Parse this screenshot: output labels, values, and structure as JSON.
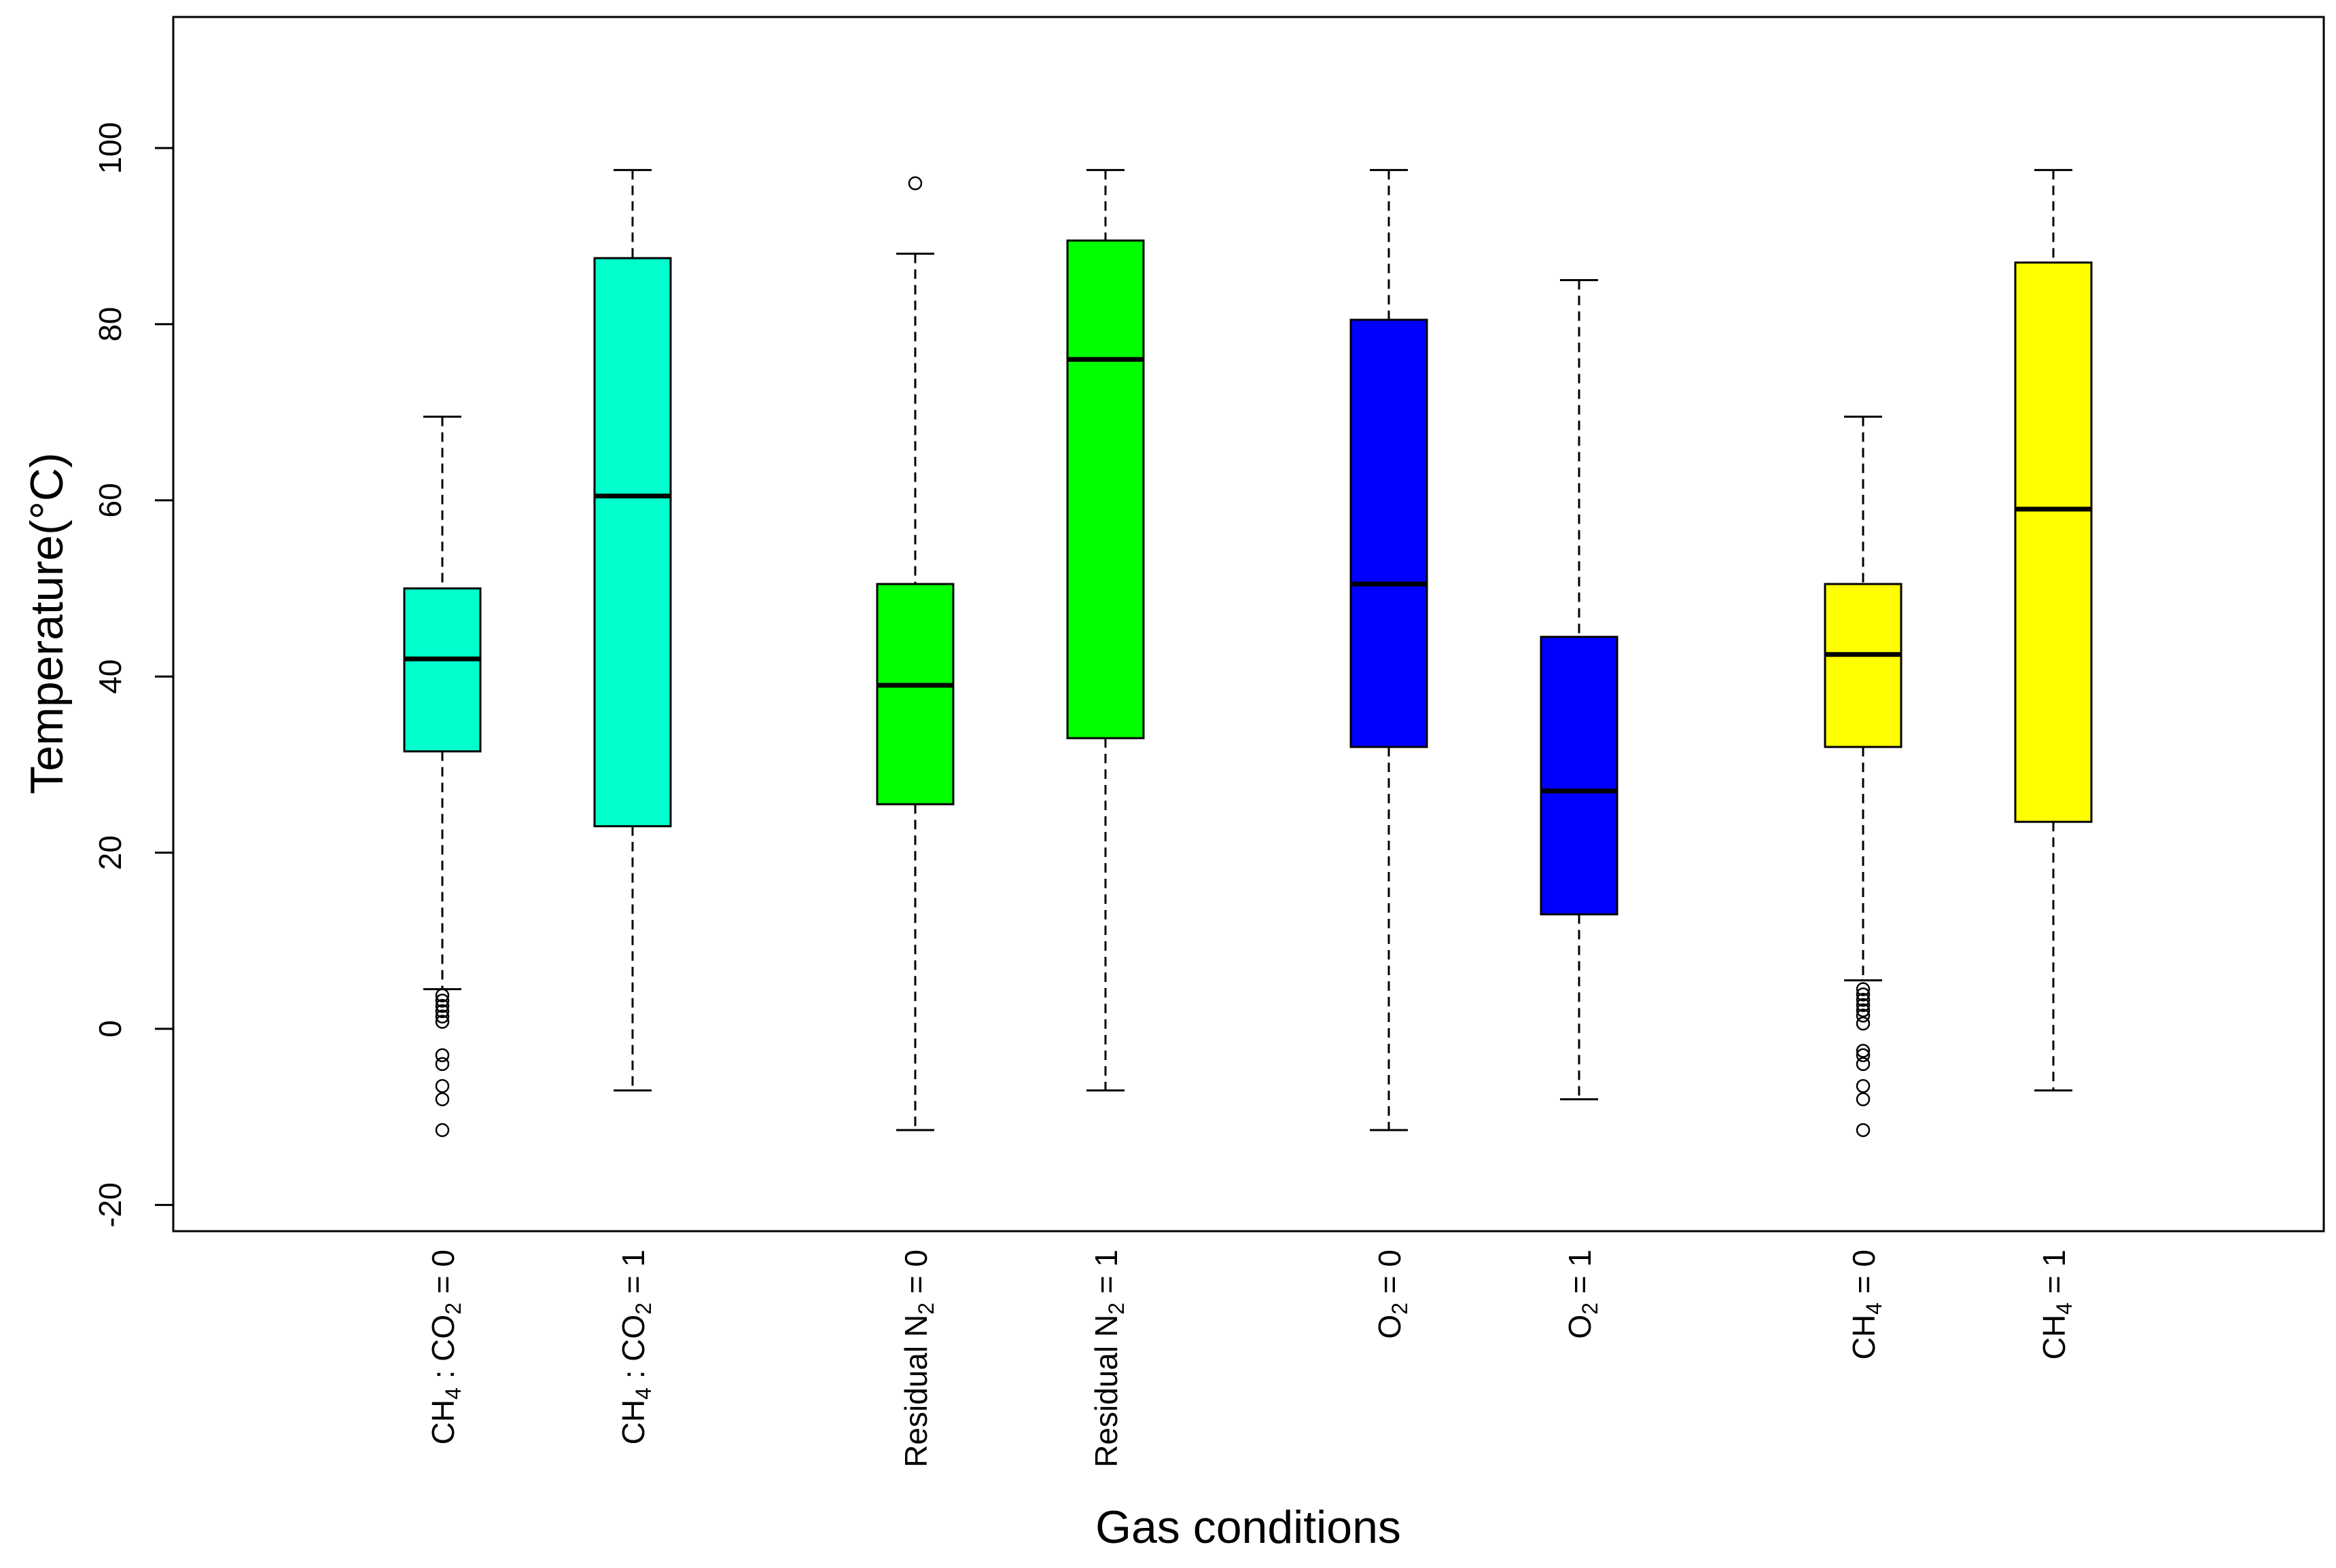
{
  "chart_data": {
    "type": "boxplot",
    "xlabel": "Gas conditions",
    "ylabel": "Temperature(°C)",
    "ylim": [
      -23,
      115
    ],
    "yticks": [
      -20,
      0,
      20,
      40,
      60,
      80,
      100
    ],
    "grid": false,
    "legend": "none",
    "categories": [
      {
        "label_parts": [
          [
            "CH",
            ""
          ],
          [
            "4",
            "sub"
          ],
          [
            " : CO",
            ""
          ],
          [
            "2",
            "sub"
          ],
          [
            " = 0",
            ""
          ]
        ]
      },
      {
        "label_parts": [
          [
            "CH",
            ""
          ],
          [
            "4",
            "sub"
          ],
          [
            " : CO",
            ""
          ],
          [
            "2",
            "sub"
          ],
          [
            " = 1",
            ""
          ]
        ]
      },
      {
        "label_parts": [
          [
            "Residual N",
            ""
          ],
          [
            "2",
            "sub"
          ],
          [
            " = 0",
            ""
          ]
        ]
      },
      {
        "label_parts": [
          [
            "Residual N",
            ""
          ],
          [
            "2",
            "sub"
          ],
          [
            " = 1",
            ""
          ]
        ]
      },
      {
        "label_parts": [
          [
            "O",
            ""
          ],
          [
            "2",
            "sub"
          ],
          [
            " = 0",
            ""
          ]
        ]
      },
      {
        "label_parts": [
          [
            "O",
            ""
          ],
          [
            "2",
            "sub"
          ],
          [
            " = 1",
            ""
          ]
        ]
      },
      {
        "label_parts": [
          [
            "CH",
            ""
          ],
          [
            "4",
            "sub"
          ],
          [
            " = 0",
            ""
          ]
        ]
      },
      {
        "label_parts": [
          [
            "CH",
            ""
          ],
          [
            "4",
            "sub"
          ],
          [
            " = 1",
            ""
          ]
        ]
      }
    ],
    "boxes": [
      {
        "whisker_low": 4.5,
        "q1": 31.5,
        "median": 42,
        "q3": 50,
        "whisker_high": 69.5,
        "outliers": [
          3.8,
          3.2,
          2.6,
          2.0,
          1.4,
          0.8,
          -3,
          -4,
          -6.5,
          -8,
          -11.5
        ],
        "color": "#00FFCC"
      },
      {
        "whisker_low": -7,
        "q1": 23,
        "median": 60.5,
        "q3": 87.5,
        "whisker_high": 97.5,
        "outliers": [],
        "color": "#00FFCC"
      },
      {
        "whisker_low": -11.5,
        "q1": 25.5,
        "median": 39,
        "q3": 50.5,
        "whisker_high": 88,
        "outliers": [
          96
        ],
        "color": "#00FF00"
      },
      {
        "whisker_low": -7,
        "q1": 33,
        "median": 76,
        "q3": 89.5,
        "whisker_high": 97.5,
        "outliers": [],
        "color": "#00FF00"
      },
      {
        "whisker_low": -11.5,
        "q1": 32,
        "median": 50.5,
        "q3": 80.5,
        "whisker_high": 97.5,
        "outliers": [],
        "color": "#0000FF"
      },
      {
        "whisker_low": -8,
        "q1": 13,
        "median": 27,
        "q3": 44.5,
        "whisker_high": 85,
        "outliers": [],
        "color": "#0000FF"
      },
      {
        "whisker_low": 5.5,
        "q1": 32,
        "median": 42.5,
        "q3": 50.5,
        "whisker_high": 69.5,
        "outliers": [
          4.5,
          3.9,
          3.3,
          2.7,
          2.1,
          1.5,
          0.6,
          -2.5,
          -3,
          -4,
          -6.5,
          -8,
          -11.5
        ],
        "color": "#FFFF00"
      },
      {
        "whisker_low": -7,
        "q1": 23.5,
        "median": 59,
        "q3": 87,
        "whisker_high": 97.5,
        "outliers": [],
        "color": "#FFFF00"
      }
    ]
  }
}
